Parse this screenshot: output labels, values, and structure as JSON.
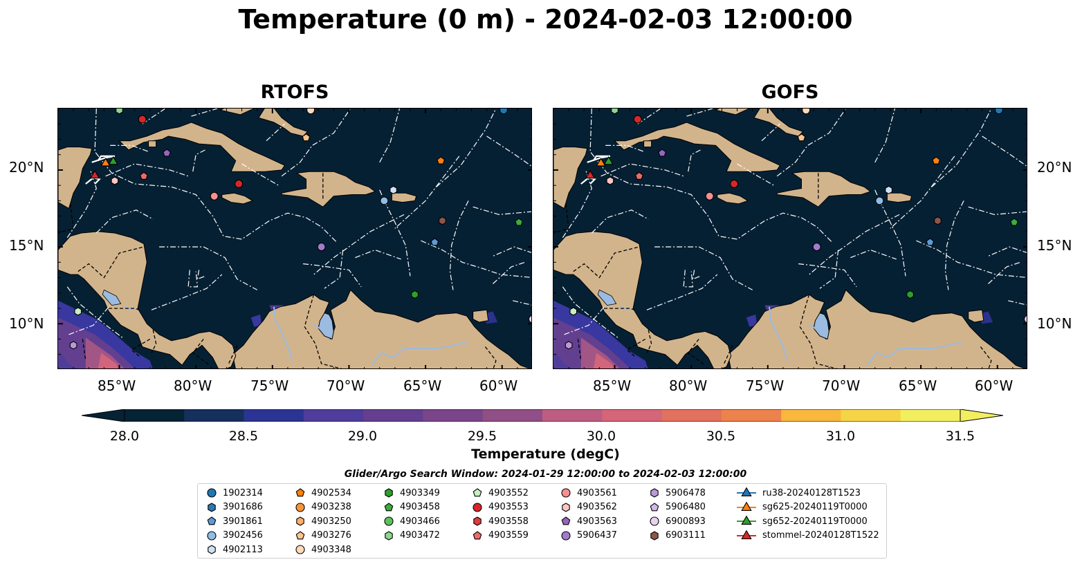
{
  "title": "Temperature (0 m) - 2024-02-03 12:00:00",
  "panels": [
    {
      "title": "RTOFS"
    },
    {
      "title": "GOFS"
    }
  ],
  "axes": {
    "lat_labels": [
      "20°N",
      "15°N",
      "10°N"
    ],
    "lon_labels": [
      "85°W",
      "80°W",
      "75°W",
      "70°W",
      "65°W",
      "60°W"
    ]
  },
  "colorbar": {
    "label": "Temperature (degC)",
    "ticks": [
      "28.0",
      "28.5",
      "29.0",
      "29.5",
      "30.0",
      "30.5",
      "31.0",
      "31.5"
    ],
    "range": [
      28.0,
      31.5
    ],
    "extend": "both",
    "colors": [
      "#062235",
      "#16305d",
      "#2c3493",
      "#3b3aa6",
      "#4e3d9b",
      "#653f8f",
      "#7b4689",
      "#904f86",
      "#a55785",
      "#bd5e80",
      "#d4667a",
      "#e2715f",
      "#ec834c",
      "#f59b3f",
      "#f8b73d",
      "#f6d44a",
      "#f2ee60"
    ]
  },
  "search_window": "Glider/Argo Search Window: 2024-01-29 12:00:00 to 2024-02-03 12:00:00",
  "colors": {
    "land": "#d2b48c",
    "ocean": "#062033",
    "lake": "#9bbbe0",
    "boundary": "#ffffff"
  },
  "legend": {
    "columns": [
      [
        {
          "label": "1902314",
          "marker": "circle",
          "color": "#1f77b4"
        },
        {
          "label": "3901686",
          "marker": "hexagon",
          "color": "#2b78b6"
        },
        {
          "label": "3901861",
          "marker": "pentagon",
          "color": "#5b9bd5"
        },
        {
          "label": "3902456",
          "marker": "circle",
          "color": "#8fbde6"
        },
        {
          "label": "4902113",
          "marker": "hexagon",
          "color": "#cde3f5"
        }
      ],
      [
        {
          "label": "4902534",
          "marker": "pentagon",
          "color": "#ff7f0e"
        },
        {
          "label": "4903238",
          "marker": "circle",
          "color": "#f99537"
        },
        {
          "label": "4903250",
          "marker": "hexagon",
          "color": "#fdae6b"
        },
        {
          "label": "4903276",
          "marker": "pentagon",
          "color": "#fdc48d"
        },
        {
          "label": "4903348",
          "marker": "circle",
          "color": "#fddab9"
        }
      ],
      [
        {
          "label": "4903349",
          "marker": "hexagon",
          "color": "#2ca02c"
        },
        {
          "label": "4903458",
          "marker": "pentagon",
          "color": "#3bad3b"
        },
        {
          "label": "4903466",
          "marker": "circle",
          "color": "#5cc15c"
        },
        {
          "label": "4903472",
          "marker": "hexagon",
          "color": "#8ed78e"
        },
        {
          "label": "",
          "marker": "",
          "color": ""
        }
      ],
      [
        {
          "label": "4903552",
          "marker": "pentagon",
          "color": "#c7efc1"
        },
        {
          "label": "4903553",
          "marker": "circle",
          "color": "#d62728"
        },
        {
          "label": "4903558",
          "marker": "hexagon",
          "color": "#de3b3c"
        },
        {
          "label": "4903559",
          "marker": "pentagon",
          "color": "#ee6a6a"
        },
        {
          "label": "",
          "marker": "",
          "color": ""
        }
      ],
      [
        {
          "label": "4903561",
          "marker": "circle",
          "color": "#f4908f"
        },
        {
          "label": "4903562",
          "marker": "hexagon",
          "color": "#fbc6c4"
        },
        {
          "label": "4903563",
          "marker": "pentagon",
          "color": "#9467bd"
        },
        {
          "label": "5906437",
          "marker": "circle",
          "color": "#a27ccc"
        },
        {
          "label": "",
          "marker": "",
          "color": ""
        }
      ],
      [
        {
          "label": "5906478",
          "marker": "hexagon",
          "color": "#b89ad6"
        },
        {
          "label": "5906480",
          "marker": "pentagon",
          "color": "#d1b8e6"
        },
        {
          "label": "6900893",
          "marker": "circle",
          "color": "#e7d3f1"
        },
        {
          "label": "6903111",
          "marker": "hexagon",
          "color": "#8c564b"
        },
        {
          "label": "",
          "marker": "",
          "color": ""
        }
      ],
      [
        {
          "label": "ru38-20240128T1523",
          "marker": "triangle-line",
          "color": "#1f77b4"
        },
        {
          "label": "sg625-20240119T0000",
          "marker": "triangle-line",
          "color": "#ff7f0e"
        },
        {
          "label": "sg652-20240119T0000",
          "marker": "triangle-line",
          "color": "#2ca02c"
        },
        {
          "label": "stommel-20240128T1522",
          "marker": "triangle-line",
          "color": "#d62728"
        },
        {
          "label": "",
          "marker": "",
          "color": ""
        }
      ]
    ]
  },
  "platforms": [
    {
      "marker": "circle",
      "color": "#1f77b4",
      "lon": -59.9,
      "lat": 23.9
    },
    {
      "marker": "circle",
      "color": "#d62728",
      "lon": -83.5,
      "lat": 23.3
    },
    {
      "marker": "hexagon",
      "color": "#8ed78e",
      "lon": -85.0,
      "lat": 23.9
    },
    {
      "marker": "circle",
      "color": "#fddab9",
      "lon": -72.5,
      "lat": 23.9
    },
    {
      "marker": "pentagon",
      "color": "#fdc48d",
      "lon": -72.8,
      "lat": 22.1
    },
    {
      "marker": "pentagon",
      "color": "#9467bd",
      "lon": -81.9,
      "lat": 21.1
    },
    {
      "marker": "pentagon",
      "color": "#ff7f0e",
      "lon": -64.0,
      "lat": 20.6
    },
    {
      "marker": "pentagon",
      "color": "#ee6a6a",
      "lon": -83.4,
      "lat": 19.6
    },
    {
      "marker": "hexagon",
      "color": "#fbc6c4",
      "lon": -85.3,
      "lat": 19.3
    },
    {
      "marker": "circle",
      "color": "#d62728",
      "lon": -77.2,
      "lat": 19.1
    },
    {
      "marker": "circle",
      "color": "#f4908f",
      "lon": -78.8,
      "lat": 18.3
    },
    {
      "marker": "hexagon",
      "color": "#cde3f5",
      "lon": -67.1,
      "lat": 18.7
    },
    {
      "marker": "circle",
      "color": "#8fbde6",
      "lon": -67.7,
      "lat": 18.0
    },
    {
      "marker": "hexagon",
      "color": "#8c564b",
      "lon": -63.9,
      "lat": 16.7
    },
    {
      "marker": "pentagon",
      "color": "#3bad3b",
      "lon": -58.9,
      "lat": 16.6
    },
    {
      "marker": "pentagon",
      "color": "#5b9bd5",
      "lon": -64.4,
      "lat": 15.3
    },
    {
      "marker": "circle",
      "color": "#a27ccc",
      "lon": -71.8,
      "lat": 15.0
    },
    {
      "marker": "hexagon",
      "color": "#2ca02c",
      "lon": -65.7,
      "lat": 11.9
    },
    {
      "marker": "hexagon",
      "color": "#c7efc1",
      "lon": -87.7,
      "lat": 10.8
    },
    {
      "marker": "circle",
      "color": "#e7d3f1",
      "lon": -58.0,
      "lat": 10.3
    },
    {
      "marker": "hexagon",
      "color": "#b89ad6",
      "lon": -88.0,
      "lat": 8.6
    },
    {
      "marker": "triangle",
      "color": "#ff7f0e",
      "lon": -85.9,
      "lat": 20.5
    },
    {
      "marker": "triangle",
      "color": "#2ca02c",
      "lon": -85.4,
      "lat": 20.6
    },
    {
      "marker": "triangle",
      "color": "#d62728",
      "lon": -86.6,
      "lat": 19.7
    }
  ]
}
